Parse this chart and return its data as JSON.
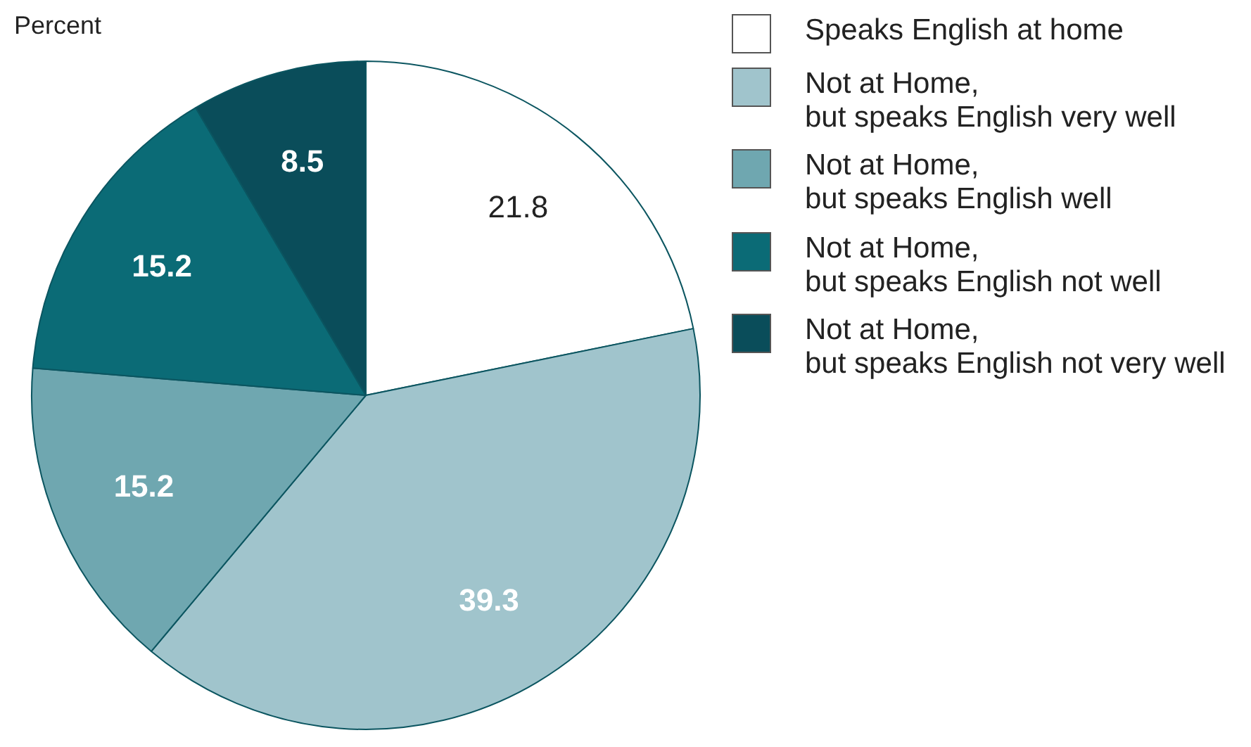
{
  "chart_data": {
    "type": "pie",
    "title": "Percent",
    "categories": [
      "Speaks English at home",
      "Not at Home,\nbut speaks English very well",
      "Not at Home,\nbut speaks English well",
      "Not at Home,\nbut speaks English not well",
      "Not at Home,\nbut speaks English not very well"
    ],
    "values": [
      21.8,
      39.3,
      15.2,
      15.2,
      8.5
    ],
    "colors": [
      "#ffffff",
      "#a0c4cc",
      "#6fa7b0",
      "#0b6b76",
      "#0a4d5a"
    ],
    "data_labels": true,
    "legend": "right"
  }
}
